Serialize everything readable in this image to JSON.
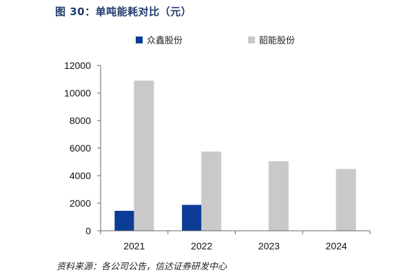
{
  "figure": {
    "title": "图 30：单吨能耗对比（元）",
    "source": "资料来源：各公司公告，信达证券研发中心"
  },
  "chart_data": {
    "type": "bar",
    "title": "单吨能耗对比（元）",
    "xlabel": "",
    "ylabel": "",
    "categories": [
      "2021",
      "2022",
      "2023",
      "2024"
    ],
    "series": [
      {
        "name": "众鑫股份",
        "color": "#0b3c96",
        "values": [
          1450,
          1880,
          null,
          null
        ]
      },
      {
        "name": "韶能股份",
        "color": "#c9c9c9",
        "values": [
          10900,
          5750,
          5050,
          4480
        ]
      }
    ],
    "ylim": [
      0,
      12000
    ],
    "yticks": [
      0,
      2000,
      4000,
      6000,
      8000,
      10000,
      12000
    ],
    "grid": false,
    "legend_position": "top"
  }
}
